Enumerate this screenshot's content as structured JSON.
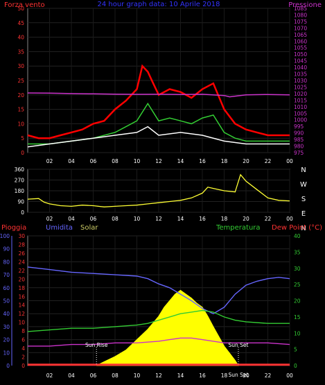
{
  "chart_data": [
    {
      "type": "line",
      "title": "24 hour graph data: 10 Aprile 2018",
      "ylabel_left": "Forza vento",
      "ylabel_right": "Pressione",
      "x_ticks": [
        "02",
        "04",
        "06",
        "08",
        "10",
        "12",
        "14",
        "16",
        "18",
        "20",
        "22",
        "00"
      ],
      "ylim_left": [
        0,
        50
      ],
      "y_ticks_left": [
        "0",
        "5",
        "10",
        "15",
        "20",
        "25",
        "30",
        "35",
        "40",
        "45",
        "50"
      ],
      "ylim_right": [
        975,
        1085
      ],
      "y_ticks_right": [
        "975",
        "980",
        "985",
        "990",
        "995",
        "1000",
        "1005",
        "1010",
        "1015",
        "1020",
        "1025",
        "1030",
        "1035",
        "1040",
        "1045",
        "1050",
        "1055",
        "1060",
        "1065",
        "1070",
        "1075",
        "1080",
        "1085"
      ],
      "series": [
        {
          "color": "#ff0000",
          "axis": "left",
          "x": [
            0,
            1,
            2,
            3,
            4,
            5,
            6,
            7,
            8,
            9,
            10,
            10.5,
            11,
            11.5,
            12,
            13,
            14,
            15,
            16,
            17,
            18,
            19,
            20,
            21,
            22,
            23,
            24
          ],
          "values": [
            6,
            5,
            5,
            6,
            7,
            8,
            10,
            11,
            15,
            18,
            22,
            30,
            28,
            24,
            20,
            22,
            21,
            19,
            22,
            24,
            15,
            10,
            8,
            7,
            6,
            6,
            6
          ]
        },
        {
          "color": "#33cc33",
          "axis": "left",
          "x": [
            0,
            2,
            4,
            6,
            8,
            9,
            10,
            11,
            12,
            13,
            14,
            15,
            16,
            17,
            18,
            19,
            20,
            22,
            24
          ],
          "values": [
            3,
            3,
            4,
            5,
            7,
            9,
            11,
            17,
            11,
            12,
            11,
            10,
            12,
            13,
            7,
            5,
            4,
            4,
            4
          ]
        },
        {
          "color": "#ffffff",
          "axis": "left",
          "x": [
            0,
            2,
            4,
            6,
            8,
            10,
            11,
            12,
            14,
            16,
            18,
            20,
            22,
            24
          ],
          "values": [
            2,
            3,
            4,
            5,
            6,
            7,
            9,
            6,
            7,
            6,
            4,
            3,
            3,
            3
          ]
        },
        {
          "color": "#cc33cc",
          "axis": "right",
          "x": [
            0,
            2,
            4,
            6,
            8,
            10,
            12,
            14,
            16,
            18,
            18.5,
            20,
            22,
            24
          ],
          "values": [
            1020.5,
            1020.3,
            1020,
            1019.8,
            1019.6,
            1019.4,
            1019.5,
            1019.3,
            1019.5,
            1018.5,
            1017.5,
            1019,
            1019.3,
            1019
          ]
        }
      ]
    },
    {
      "type": "line",
      "ylabel_right": [
        "N",
        "W",
        "S",
        "E",
        "N"
      ],
      "x_ticks": [
        "02",
        "04",
        "06",
        "08",
        "10",
        "12",
        "14",
        "16",
        "18",
        "20",
        "22",
        "00"
      ],
      "ylim": [
        0,
        360
      ],
      "y_ticks": [
        "0",
        "90",
        "180",
        "270",
        "360"
      ],
      "series": [
        {
          "color": "#ffff33",
          "x": [
            0,
            1,
            1.5,
            2,
            3,
            4,
            5,
            6,
            7,
            8,
            9,
            10,
            11,
            12,
            13,
            14,
            15,
            16,
            16.5,
            17,
            18,
            19,
            19.5,
            20,
            21,
            22,
            23,
            24
          ],
          "values": [
            110,
            115,
            85,
            70,
            55,
            50,
            60,
            55,
            45,
            50,
            55,
            60,
            70,
            80,
            90,
            100,
            120,
            160,
            210,
            200,
            180,
            170,
            315,
            260,
            190,
            120,
            100,
            95
          ]
        }
      ]
    },
    {
      "type": "line",
      "labels": [
        "Pioggia",
        "Umidita",
        "Solar",
        "Temperatura",
        "Dew Point (°C)"
      ],
      "x_ticks": [
        "02",
        "04",
        "06",
        "08",
        "10",
        "12",
        "14",
        "16",
        "18",
        "20",
        "22",
        "00"
      ],
      "ylim_humidity": [
        0,
        100
      ],
      "y_ticks_humidity": [
        "0",
        "10",
        "20",
        "30",
        "40",
        "50",
        "60",
        "70",
        "80",
        "90",
        "100"
      ],
      "ylim_rain": [
        0,
        30
      ],
      "y_ticks_rain": [
        "0",
        "2",
        "4",
        "6",
        "8",
        "10",
        "12",
        "14",
        "16",
        "18",
        "20",
        "22",
        "24",
        "26",
        "28",
        "30"
      ],
      "ylim_temp": [
        0,
        40
      ],
      "y_ticks_temp": [
        "0",
        "5",
        "10",
        "15",
        "20",
        "25",
        "30",
        "35",
        "40"
      ],
      "annotations": [
        "Sun Rise",
        "Sun Set",
        "Sun Set"
      ],
      "series": [
        {
          "color": "#6666ff",
          "name": "Umidita",
          "x": [
            0,
            2,
            4,
            6,
            8,
            10,
            11,
            12,
            13,
            14,
            15,
            16,
            17,
            18,
            19,
            20,
            21,
            22,
            23,
            24
          ],
          "values": [
            76,
            74,
            72,
            71,
            70,
            69,
            67,
            63,
            60,
            55,
            50,
            44,
            40,
            45,
            55,
            62,
            65,
            67,
            68,
            67
          ]
        },
        {
          "color": "#33cc33",
          "name": "Temperatura",
          "x": [
            0,
            2,
            4,
            6,
            8,
            10,
            11,
            12,
            13,
            14,
            15,
            16,
            17,
            18,
            19,
            20,
            22,
            24
          ],
          "values": [
            10.5,
            11,
            11.5,
            11.5,
            12,
            12.5,
            13,
            14,
            15,
            16,
            16.5,
            17,
            16.5,
            15,
            14,
            13.5,
            13,
            13
          ]
        },
        {
          "color": "#cc33cc",
          "name": "Dew Point (°C)",
          "x": [
            0,
            2,
            4,
            6,
            8,
            10,
            12,
            13,
            14,
            15,
            16,
            17,
            18,
            19,
            20,
            22,
            24
          ],
          "values": [
            6,
            6,
            6.5,
            6.5,
            7,
            7,
            7.5,
            8,
            8.5,
            8.5,
            8,
            7.5,
            7,
            7,
            7,
            7,
            6.5
          ]
        },
        {
          "color": "#ffff00",
          "name": "Solar",
          "x": [
            6.3,
            7,
            8,
            9,
            10,
            11,
            12,
            12.5,
            13,
            13.5,
            14,
            14.5,
            15,
            15.5,
            16,
            16.5,
            17,
            18,
            19,
            19.3
          ],
          "values": [
            0,
            3,
            7,
            12,
            20,
            28,
            38,
            45,
            50,
            55,
            58,
            55,
            52,
            48,
            45,
            38,
            30,
            15,
            4,
            0
          ]
        },
        {
          "color": "#ff3333",
          "name": "Pioggia",
          "x": [
            0,
            24
          ],
          "values": [
            0.2,
            0.2
          ]
        }
      ]
    }
  ]
}
